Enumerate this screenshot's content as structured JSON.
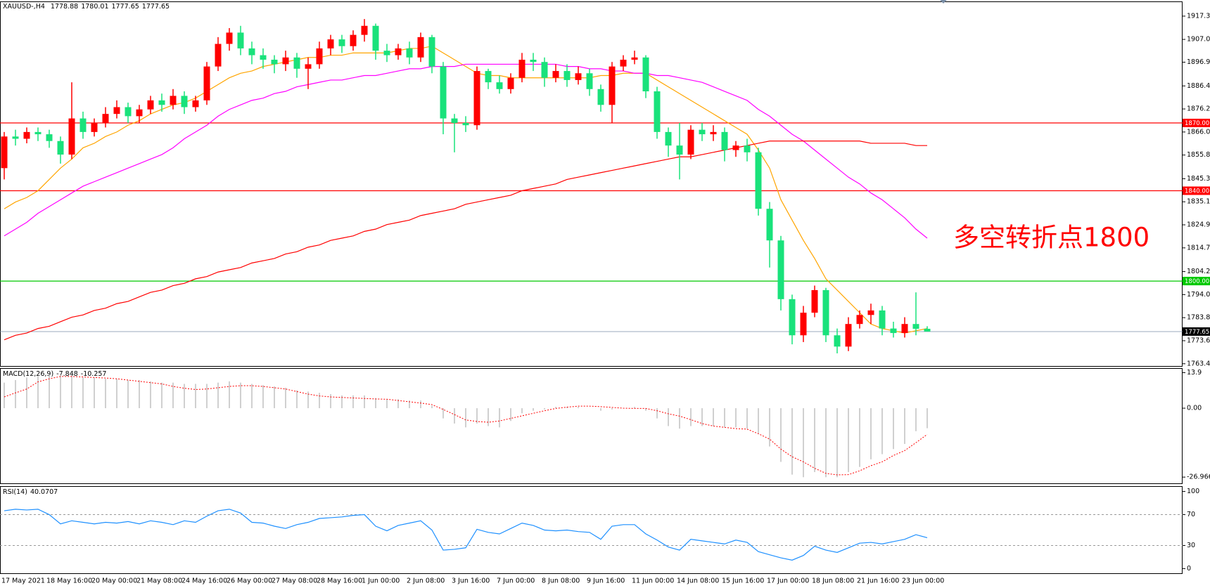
{
  "chart_data": [
    {
      "type": "candlestick",
      "symbol": "XAUUSD-,H4",
      "categories": [
        "17 May 2021",
        null,
        null,
        null,
        "18 May 16:00",
        null,
        null,
        null,
        "20 May 00:00",
        null,
        null,
        null,
        "21 May 08:00",
        null,
        null,
        null,
        "24 May 16:00",
        null,
        null,
        null,
        "26 May 00:00",
        null,
        null,
        null,
        "27 May 08:00",
        null,
        null,
        null,
        "28 May 16:00",
        null,
        null,
        null,
        "1 Jun 00:00",
        null,
        null,
        null,
        "2 Jun 08:00",
        null,
        null,
        null,
        "3 Jun 16:00",
        null,
        null,
        null,
        "7 Jun 00:00",
        null,
        null,
        null,
        "8 Jun 08:00",
        null,
        null,
        null,
        "9 Jun 16:00",
        null,
        null,
        null,
        "11 Jun 00:00",
        null,
        null,
        null,
        "14 Jun 08:00",
        null,
        null,
        null,
        "15 Jun 16:00",
        null,
        null,
        null,
        "17 Jun 00:00",
        null,
        null,
        null,
        "18 Jun 08:00",
        null,
        null,
        null,
        "21 Jun 16:00",
        null,
        null,
        null,
        "23 Jun 00:00",
        null,
        null
      ],
      "open": [
        1850,
        1864,
        1863,
        1866,
        1865,
        1862,
        1856,
        1872,
        1866,
        1870,
        1874,
        1877,
        1873,
        1876,
        1880,
        1878,
        1882,
        1877,
        1880,
        1895,
        1905,
        1910,
        1903,
        1900,
        1898,
        1896,
        1899,
        1894,
        1896,
        1903,
        1907,
        1904,
        1909,
        1913,
        1902,
        1900,
        1903,
        1899,
        1908,
        1895,
        1872,
        1870,
        1869,
        1893,
        1888,
        1885,
        1890,
        1898,
        1897,
        1890,
        1893,
        1889,
        1892,
        1885,
        1878,
        1895,
        1898,
        1899,
        1884,
        1866,
        1860,
        1856,
        1867,
        1865,
        1866,
        1858,
        1860,
        1857,
        1832,
        1818,
        1792,
        1776,
        1786,
        1796,
        1776,
        1771,
        1781,
        1785,
        1787,
        1779,
        1777,
        1781,
        1778.88
      ],
      "high": [
        1866,
        1867,
        1868,
        1868,
        1867,
        1864,
        1888,
        1875,
        1872,
        1877,
        1880,
        1879,
        1878,
        1882,
        1883,
        1885,
        1884,
        1882,
        1897,
        1908,
        1912,
        1913,
        1906,
        1903,
        1900,
        1902,
        1901,
        1899,
        1906,
        1909,
        1909,
        1911,
        1916,
        1914,
        1905,
        1905,
        1906,
        1910,
        1909,
        1897,
        1874,
        1873,
        1895,
        1894,
        1891,
        1892,
        1901,
        1901,
        1899,
        1896,
        1896,
        1895,
        1894,
        1887,
        1897,
        1900,
        1902,
        1900,
        1886,
        1868,
        1870,
        1869,
        1870,
        1869,
        1868,
        1862,
        1863,
        1859,
        1835,
        1820,
        1794,
        1789,
        1798,
        1797,
        1779,
        1784,
        1787,
        1790,
        1789,
        1782,
        1784,
        1795,
        1780.01
      ],
      "low": [
        1845,
        1860,
        1861,
        1862,
        1859,
        1852,
        1854,
        1863,
        1864,
        1868,
        1872,
        1870,
        1870,
        1874,
        1875,
        1876,
        1874,
        1875,
        1878,
        1893,
        1902,
        1900,
        1896,
        1894,
        1892,
        1893,
        1890,
        1885,
        1894,
        1900,
        1901,
        1902,
        1906,
        1898,
        1897,
        1898,
        1896,
        1897,
        1892,
        1865,
        1857,
        1866,
        1867,
        1885,
        1883,
        1883,
        1888,
        1893,
        1886,
        1888,
        1886,
        1887,
        1882,
        1875,
        1870,
        1893,
        1896,
        1881,
        1863,
        1855,
        1845,
        1854,
        1862,
        1862,
        1853,
        1855,
        1853,
        1829,
        1806,
        1787,
        1772,
        1773,
        1784,
        1773,
        1768,
        1769,
        1779,
        1781,
        1776,
        1775,
        1775,
        1776,
        1777.65
      ],
      "close": [
        1864,
        1863,
        1866,
        1865,
        1862,
        1856,
        1872,
        1866,
        1870,
        1874,
        1877,
        1873,
        1876,
        1880,
        1878,
        1882,
        1877,
        1880,
        1895,
        1905,
        1910,
        1903,
        1900,
        1898,
        1896,
        1899,
        1894,
        1896,
        1903,
        1907,
        1904,
        1909,
        1913,
        1902,
        1900,
        1903,
        1899,
        1908,
        1895,
        1872,
        1870,
        1869,
        1893,
        1888,
        1885,
        1890,
        1898,
        1897,
        1890,
        1893,
        1889,
        1892,
        1885,
        1878,
        1895,
        1898,
        1899,
        1884,
        1866,
        1860,
        1856,
        1867,
        1865,
        1866,
        1858,
        1860,
        1857,
        1832,
        1818,
        1792,
        1776,
        1786,
        1796,
        1776,
        1771,
        1781,
        1785,
        1787,
        1779,
        1777,
        1781,
        1778.88,
        1777.65
      ],
      "up_color": "#ff0000",
      "down_color": "#19e27b",
      "lines": [
        {
          "color": "#ffa500",
          "values": [
            1832,
            1835,
            1837,
            1840,
            1845,
            1850,
            1854,
            1859,
            1861,
            1864,
            1866,
            1869,
            1871,
            1874,
            1876,
            1878,
            1879,
            1881,
            1884,
            1887,
            1890,
            1892,
            1893,
            1895,
            1896,
            1897,
            1898,
            1899,
            1899,
            1900,
            1900,
            1901,
            1901,
            1901,
            1901,
            1902,
            1903,
            1903,
            1904,
            1901,
            1898,
            1895,
            1892,
            1891,
            1891,
            1890,
            1890,
            1890,
            1890,
            1890,
            1890,
            1890,
            1890,
            1891,
            1891,
            1892,
            1892,
            1892,
            1889,
            1886,
            1883,
            1880,
            1877,
            1874,
            1871,
            1868,
            1865,
            1858,
            1850,
            1836,
            1827,
            1818,
            1810,
            1801,
            1796,
            1791,
            1786,
            1781,
            1779,
            1778,
            1777,
            1778,
            1779
          ]
        },
        {
          "color": "#ff00ff",
          "values": [
            1820,
            1823,
            1826,
            1830,
            1833,
            1836,
            1839,
            1842,
            1844,
            1846,
            1848,
            1850,
            1852,
            1854,
            1856,
            1859,
            1863,
            1866,
            1869,
            1873,
            1876,
            1878,
            1880,
            1881,
            1883,
            1884,
            1886,
            1887,
            1888,
            1889,
            1889,
            1890,
            1891,
            1891,
            1892,
            1893,
            1894,
            1894,
            1895,
            1895,
            1895,
            1896,
            1896,
            1896,
            1896,
            1896,
            1896,
            1896,
            1896,
            1896,
            1895,
            1895,
            1894,
            1894,
            1893,
            1893,
            1892,
            1892,
            1891,
            1891,
            1890,
            1889,
            1888,
            1886,
            1884,
            1882,
            1880,
            1876,
            1873,
            1869,
            1865,
            1862,
            1858,
            1854,
            1850,
            1846,
            1843,
            1839,
            1836,
            1832,
            1828,
            1823,
            1819
          ]
        },
        {
          "color": "#ff0000",
          "values": [
            1774,
            1776,
            1777,
            1779,
            1780,
            1782,
            1784,
            1785,
            1787,
            1788,
            1790,
            1791,
            1793,
            1795,
            1796,
            1798,
            1799,
            1801,
            1802,
            1804,
            1805,
            1806,
            1808,
            1809,
            1810,
            1812,
            1813,
            1815,
            1816,
            1818,
            1819,
            1820,
            1822,
            1823,
            1825,
            1826,
            1827,
            1829,
            1830,
            1831,
            1832,
            1834,
            1835,
            1836,
            1837,
            1838,
            1840,
            1841,
            1842,
            1843,
            1845,
            1846,
            1847,
            1848,
            1849,
            1850,
            1851,
            1852,
            1853,
            1854,
            1855,
            1855,
            1856,
            1857,
            1858,
            1859,
            1860,
            1861,
            1862,
            1862,
            1862,
            1862,
            1862,
            1862,
            1862,
            1862,
            1862,
            1861,
            1861,
            1861,
            1861,
            1860,
            1860
          ]
        }
      ],
      "levels": [
        {
          "value": 1870,
          "label": "1870.00",
          "color": "#ff0000"
        },
        {
          "value": 1840,
          "label": "1840.00",
          "color": "#ff0000"
        },
        {
          "value": 1800,
          "label": "1800.00",
          "color": "#00c800"
        }
      ],
      "last_price_color": "#7a8ea6",
      "annotation": "多空转折点1800",
      "annotation_color": "#ff0000",
      "ylim": [
        1762.4,
        1923.5
      ],
      "yticks": [
        {
          "value": 1917.3,
          "label": "1917.30"
        },
        {
          "value": 1907,
          "label": "1907.00"
        },
        {
          "value": 1896.9,
          "label": "1896.90"
        },
        {
          "value": 1886.4,
          "label": "1886.40"
        },
        {
          "value": 1876.2,
          "label": "1876.20"
        },
        {
          "value": 1866,
          "label": "1866.00"
        },
        {
          "value": 1855.8,
          "label": "1855.80"
        },
        {
          "value": 1845.3,
          "label": "1845.30"
        },
        {
          "value": 1835.1,
          "label": "1835.10"
        },
        {
          "value": 1824.9,
          "label": "1824.90"
        },
        {
          "value": 1814.7,
          "label": "1814.70"
        },
        {
          "value": 1804.2,
          "label": "1804.20"
        },
        {
          "value": 1794,
          "label": "1794.00"
        },
        {
          "value": 1783.8,
          "label": "1783.80"
        },
        {
          "value": 1773.6,
          "label": "1773.60"
        },
        {
          "value": 1763.4,
          "label": "1763.40"
        }
      ]
    },
    {
      "type": "macd",
      "name": "MACD(12,26,9)",
      "values": [
        10,
        11,
        12,
        12.5,
        13,
        13,
        13,
        12,
        12,
        11.5,
        11.5,
        11,
        11,
        10.5,
        10,
        10,
        9.5,
        9.5,
        9.5,
        10,
        10.5,
        10,
        9.5,
        9,
        8.5,
        8,
        7,
        6.5,
        6,
        5.5,
        5,
        5,
        5,
        4,
        3.5,
        3.5,
        3,
        3,
        1,
        -4,
        -6,
        -7.5,
        -6,
        -7,
        -7.5,
        -5,
        -2,
        -1,
        -0.5,
        0.5,
        0.5,
        0.5,
        0,
        -1,
        -0.5,
        0,
        0.5,
        -1,
        -4,
        -7,
        -8,
        -7,
        -7,
        -7,
        -7.5,
        -7.5,
        -8,
        -10,
        -15,
        -21,
        -26,
        -27,
        -25,
        -27,
        -27,
        -25,
        -23,
        -20,
        -18,
        -16,
        -14,
        -9,
        -7.848
      ],
      "signal": [
        4.4,
        6,
        7.5,
        10.3,
        11.5,
        12.4,
        12.4,
        12.2,
        12,
        11.8,
        11.5,
        11,
        10.5,
        10,
        9.5,
        8.5,
        7.8,
        7.3,
        7.5,
        8,
        8.5,
        8.8,
        8.8,
        8.5,
        8,
        7.5,
        6.5,
        5.5,
        4.8,
        4.4,
        4.2,
        4,
        3.8,
        3.6,
        3.5,
        3,
        2.5,
        2,
        1.4,
        -0.5,
        -2.5,
        -4.6,
        -5.2,
        -5.5,
        -5,
        -4,
        -3,
        -2,
        -1,
        -0.1,
        0.4,
        0.8,
        0.8,
        0.6,
        0.3,
        0,
        -0.1,
        -0.1,
        -1,
        -2.2,
        -3.1,
        -4.5,
        -6,
        -7,
        -7.5,
        -8,
        -8.2,
        -10,
        -12.1,
        -16,
        -19,
        -21,
        -23.5,
        -25.5,
        -26.1,
        -26,
        -24.5,
        -22.5,
        -21,
        -18.5,
        -16.6,
        -13.5,
        -10.257
      ],
      "bar_color": "#c0c0c0",
      "signal_color": "#ff0000",
      "ylim": [
        -29.4,
        15.4
      ],
      "yticks": [
        13.9,
        {
          "value": 0,
          "label": "0.00"
        },
        -26.966
      ]
    },
    {
      "type": "line",
      "name": "RSI(14)",
      "values": [
        75,
        77,
        76,
        77,
        70,
        58,
        62,
        60,
        58,
        60,
        59,
        61,
        58,
        62,
        60,
        57,
        62,
        60,
        68,
        75,
        77,
        72,
        60,
        59,
        55,
        52,
        57,
        60,
        65,
        66,
        67,
        69,
        70,
        55,
        49,
        56,
        59,
        62,
        50,
        24,
        25,
        27,
        51,
        47,
        45,
        52,
        59,
        56,
        50,
        49,
        50,
        48,
        47,
        38,
        55,
        57,
        57,
        45,
        37,
        28,
        24,
        38,
        36,
        34,
        32,
        37,
        34,
        22,
        18,
        14,
        11,
        17,
        29,
        24,
        21,
        27,
        33,
        34,
        32,
        35,
        38,
        44,
        40.0707
      ],
      "color": "#1e90ff",
      "levels": [
        70,
        30
      ],
      "ylim": [
        -6,
        106
      ],
      "yticks": [
        100,
        70,
        30,
        0
      ]
    }
  ]
}
